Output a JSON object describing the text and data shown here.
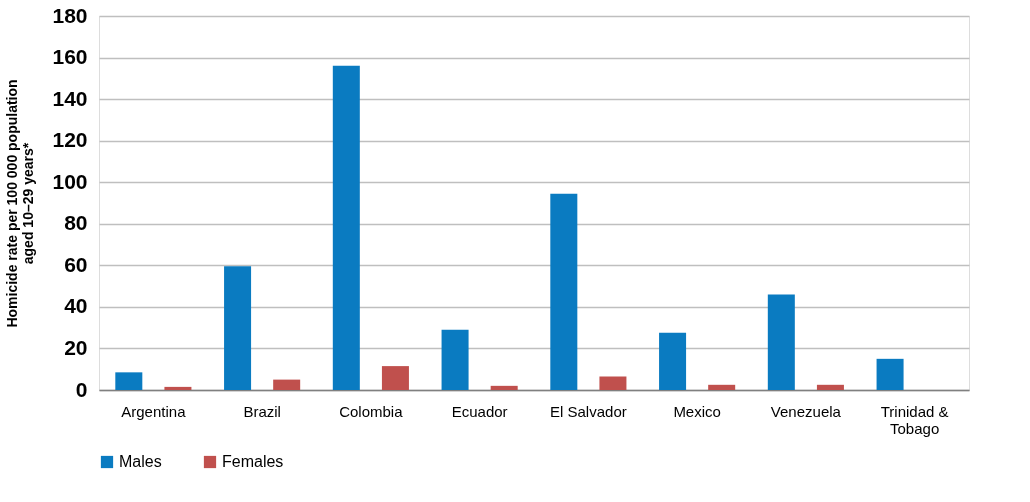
{
  "chart_data": {
    "type": "bar",
    "categories": [
      "Argentina",
      "Brazil",
      "Colombia",
      "Ecuador",
      "El Salvador",
      "Mexico",
      "Venezuela",
      "Trinidad & Tobago"
    ],
    "series": [
      {
        "name": "Males",
        "color": "#0a7bc1",
        "values": [
          8.5,
          59.5,
          156,
          29,
          94.5,
          27.5,
          46,
          15
        ]
      },
      {
        "name": "Females",
        "color": "#c0504d",
        "values": [
          1.5,
          5,
          11.5,
          2,
          6.5,
          2.5,
          2.5,
          null
        ]
      }
    ],
    "ylabel": "Homicide rate per 100 000 population aged 10–29 years*",
    "ylim": [
      0,
      180
    ],
    "yticks": [
      0,
      20,
      40,
      60,
      80,
      100,
      120,
      140,
      160,
      180
    ],
    "grid": "y",
    "legend": "bottom"
  }
}
